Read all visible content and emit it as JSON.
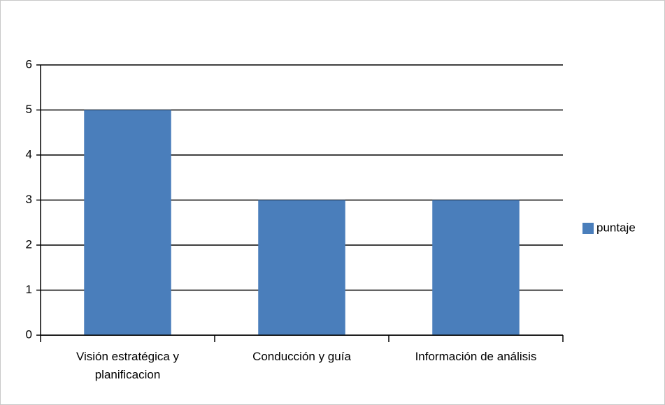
{
  "chart_data": {
    "type": "bar",
    "categories": [
      "Visión estratégica y planificacion",
      "Conducción y guía",
      "Información de análisis"
    ],
    "series": [
      {
        "name": "puntaje",
        "color": "#4a7ebb",
        "values": [
          5,
          3,
          3
        ]
      }
    ],
    "ylim": [
      0,
      6
    ],
    "yticks": [
      0,
      1,
      2,
      3,
      4,
      5,
      6
    ],
    "grid": true,
    "legend": "right"
  }
}
